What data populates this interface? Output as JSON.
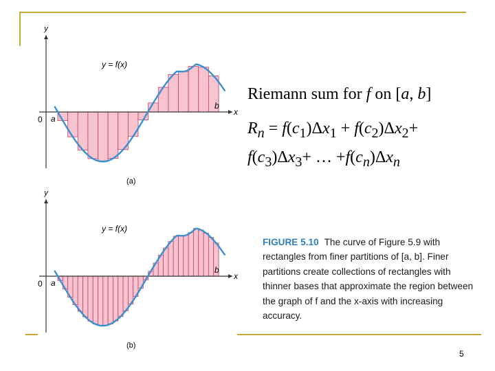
{
  "slide": {
    "heading": "Riemann sum for f on [a, b]",
    "formula_line1": "Rn = f(c1)Δx1 + f(c2)Δx2+",
    "formula_line2": "f(c3)Δx3+ … +f(cn)Δxn",
    "page_number": "5"
  },
  "figure": {
    "number": "FIGURE 5.10",
    "caption": "The curve of Figure 5.9 with rectangles from finer partitions of [a, b]. Finer partitions create collections of rectangles with thinner bases that approximate the region between the graph of f and the x-axis with increasing accuracy.",
    "panel_a": {
      "label": "(a)",
      "curve_label": "y = f(x)",
      "axis_x": "x",
      "axis_y": "y",
      "origin": "0",
      "a": "a",
      "b": "b",
      "rectangles": 16
    },
    "panel_b": {
      "label": "(b)",
      "curve_label": "y = f(x)",
      "axis_x": "x",
      "axis_y": "y",
      "origin": "0",
      "a": "a",
      "b": "b",
      "rectangles": 32
    }
  },
  "colors": {
    "accent_line": "#c8a830",
    "curve": "#3a8fd0",
    "rect_fill": "#f6c3cf",
    "rect_stroke": "#c0406a",
    "caption_title": "#2e7fc0"
  }
}
